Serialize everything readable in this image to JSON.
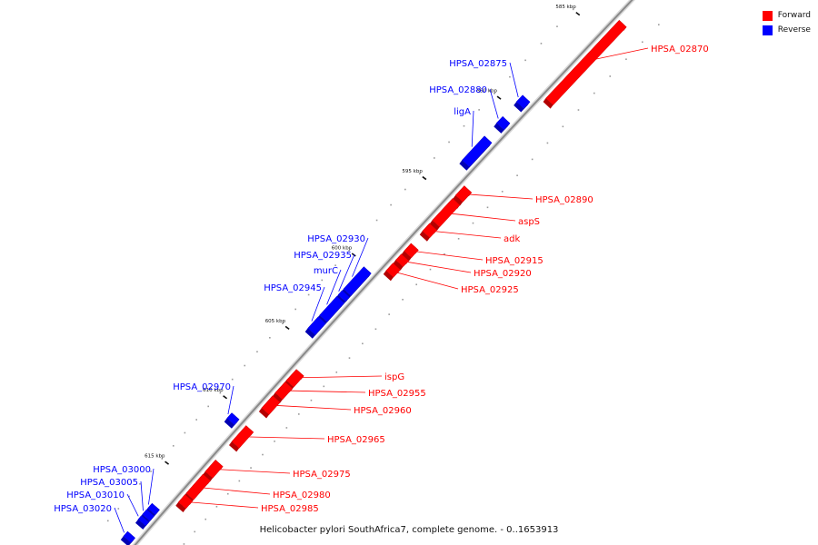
{
  "legend": {
    "forward_label": "Forward",
    "reverse_label": "Reverse",
    "forward_color": "#ff0000",
    "reverse_color": "#0000ff"
  },
  "caption": "Helicobacter pylori SouthAfrica7, complete genome. - 0..1653913",
  "ticks": [
    {
      "kbp": 585,
      "label": "585 kbp"
    },
    {
      "kbp": 590,
      "label": "590 kbp"
    },
    {
      "kbp": 595,
      "label": "595 kbp"
    },
    {
      "kbp": 600,
      "label": "600 kbp"
    },
    {
      "kbp": 605,
      "label": "605 kbp"
    },
    {
      "kbp": 610,
      "label": "610 kbp"
    },
    {
      "kbp": 615,
      "label": "615 kbp"
    }
  ],
  "genes": [
    {
      "name": "HPSA_02870",
      "strand": "forward",
      "start_kbp": 584.0,
      "end_kbp": 588.6
    },
    {
      "name": "HPSA_02875",
      "strand": "reverse",
      "start_kbp": 589.2,
      "end_kbp": 589.6
    },
    {
      "name": "HPSA_02880",
      "strand": "reverse",
      "start_kbp": 590.5,
      "end_kbp": 590.9
    },
    {
      "name": "ligA",
      "strand": "reverse",
      "start_kbp": 591.7,
      "end_kbp": 593.2
    },
    {
      "name": "HPSA_02890",
      "strand": "forward",
      "start_kbp": 594.0,
      "end_kbp": 594.6
    },
    {
      "name": "aspS",
      "strand": "forward",
      "start_kbp": 594.8,
      "end_kbp": 596.2
    },
    {
      "name": "adk",
      "strand": "forward",
      "start_kbp": 596.4,
      "end_kbp": 596.9
    },
    {
      "name": "HPSA_02915",
      "strand": "forward",
      "start_kbp": 597.7,
      "end_kbp": 598.2
    },
    {
      "name": "HPSA_02920",
      "strand": "forward",
      "start_kbp": 598.4,
      "end_kbp": 598.8
    },
    {
      "name": "HPSA_02925",
      "strand": "forward",
      "start_kbp": 599.0,
      "end_kbp": 599.5
    },
    {
      "name": "HPSA_02930",
      "strand": "reverse",
      "start_kbp": 600.1,
      "end_kbp": 601.6
    },
    {
      "name": "HPSA_02935",
      "strand": "reverse",
      "start_kbp": 601.7,
      "end_kbp": 602.0
    },
    {
      "name": "murC",
      "strand": "reverse",
      "start_kbp": 602.1,
      "end_kbp": 603.4
    },
    {
      "name": "HPSA_02945",
      "strand": "reverse",
      "start_kbp": 603.5,
      "end_kbp": 604.3
    },
    {
      "name": "ispG",
      "strand": "forward",
      "start_kbp": 606.3,
      "end_kbp": 607.1
    },
    {
      "name": "HPSA_02955",
      "strand": "forward",
      "start_kbp": 607.2,
      "end_kbp": 608.0
    },
    {
      "name": "HPSA_02960",
      "strand": "forward",
      "start_kbp": 608.2,
      "end_kbp": 609.1
    },
    {
      "name": "HPSA_02970",
      "strand": "reverse",
      "start_kbp": 610.4,
      "end_kbp": 610.8
    },
    {
      "name": "HPSA_02965",
      "strand": "forward",
      "start_kbp": 610.4,
      "end_kbp": 611.6
    },
    {
      "name": "HPSA_02975",
      "strand": "forward",
      "start_kbp": 613.0,
      "end_kbp": 613.9
    },
    {
      "name": "HPSA_02980",
      "strand": "forward",
      "start_kbp": 614.1,
      "end_kbp": 615.6
    },
    {
      "name": "HPSA_02985",
      "strand": "forward",
      "start_kbp": 615.7,
      "end_kbp": 616.3
    },
    {
      "name": "HPSA_03000",
      "strand": "reverse",
      "start_kbp": 617.4,
      "end_kbp": 617.8
    },
    {
      "name": "HPSA_03005",
      "strand": "reverse",
      "start_kbp": 617.9,
      "end_kbp": 618.3
    },
    {
      "name": "HPSA_03010",
      "strand": "reverse",
      "start_kbp": 618.4,
      "end_kbp": 618.7
    },
    {
      "name": "HPSA_03020",
      "strand": "reverse",
      "start_kbp": 619.7,
      "end_kbp": 620.1
    }
  ]
}
